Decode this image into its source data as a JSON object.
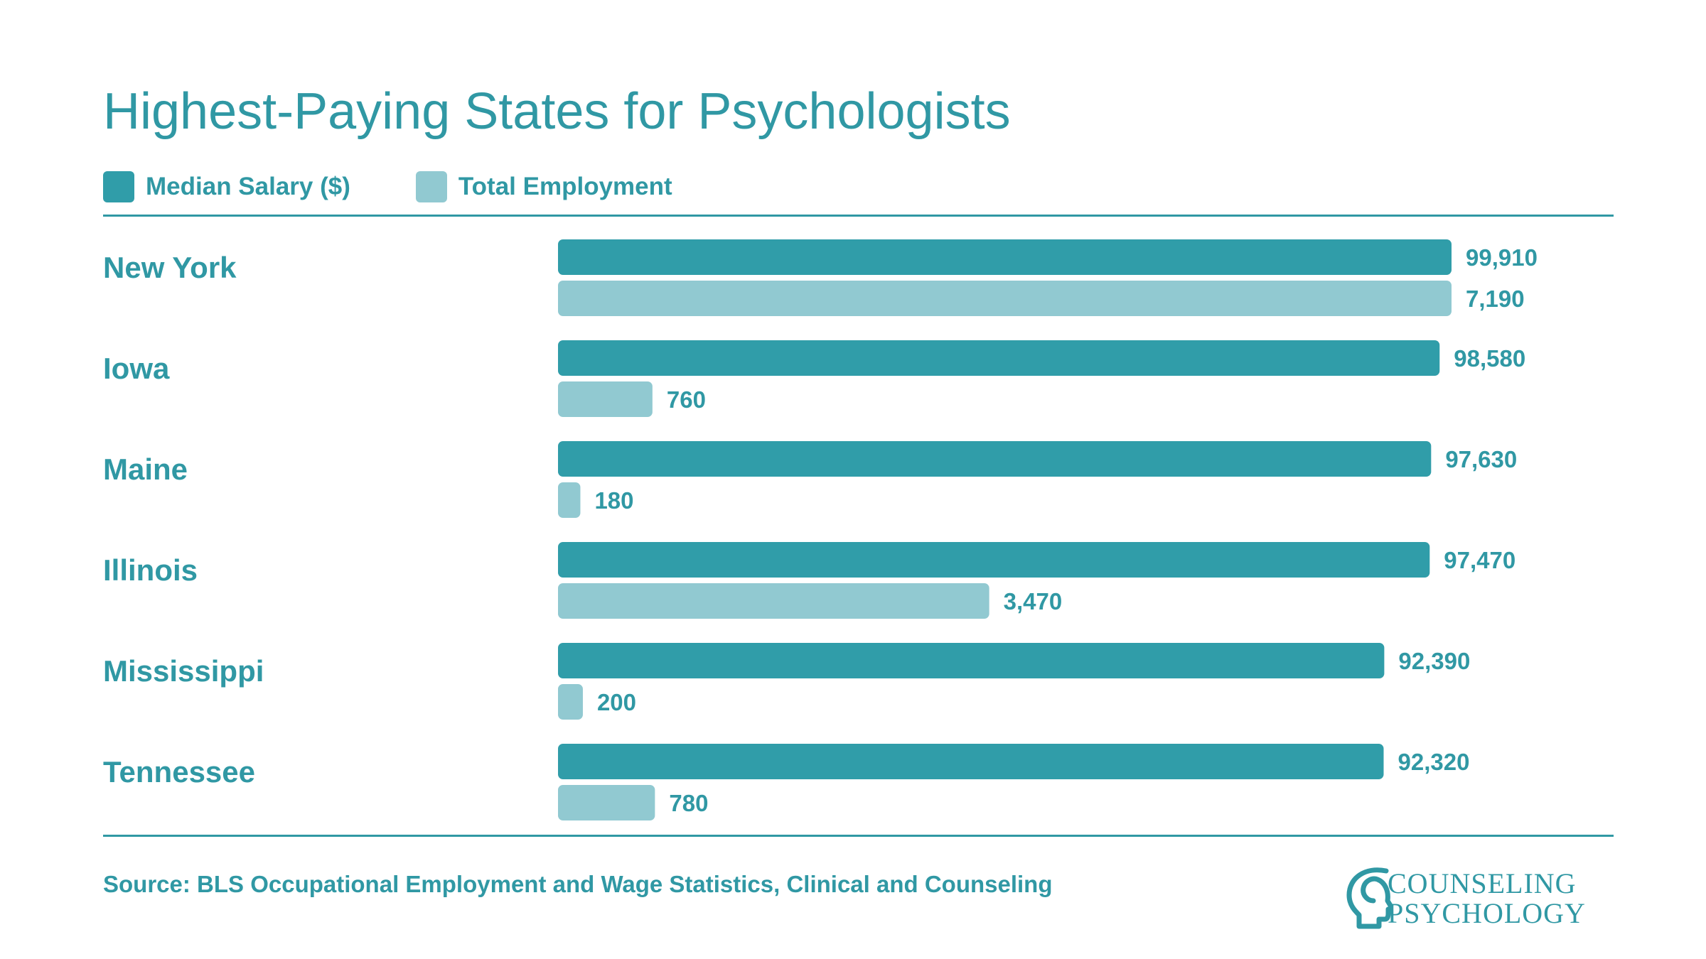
{
  "title": "Highest-Paying States for Psychologists",
  "legend": {
    "salary_label": "Median Salary ($)",
    "employment_label": "Total Employment"
  },
  "colors": {
    "salary": "#309da9",
    "employment": "#91c9d1",
    "text": "#3098a4"
  },
  "source": "Source: BLS Occupational Employment and Wage Statistics, Clinical and Counseling",
  "logo": {
    "line1": "COUNSELING",
    "line2": "PSYCHOLOGY",
    "icon": "head-profile-icon"
  },
  "chart_data": {
    "type": "bar",
    "orientation": "horizontal",
    "title": "Highest-Paying States for Psychologists",
    "categories": [
      "New York",
      "Iowa",
      "Maine",
      "Illinois",
      "Mississippi",
      "Tennessee"
    ],
    "legend_position": "top-left",
    "grid": false,
    "series": [
      {
        "name": "Median Salary ($)",
        "values": [
          99910,
          98580,
          97630,
          97470,
          92390,
          92320
        ],
        "labels": [
          "99,910",
          "98,580",
          "97,630",
          "97,470",
          "92,390",
          "92,320"
        ],
        "xlim": [
          0,
          99910
        ]
      },
      {
        "name": "Total Employment",
        "values": [
          7190,
          760,
          180,
          3470,
          200,
          780
        ],
        "labels": [
          "7,190",
          "760",
          "180",
          "3,470",
          "200",
          "780"
        ],
        "xlim": [
          0,
          7190
        ]
      }
    ]
  }
}
